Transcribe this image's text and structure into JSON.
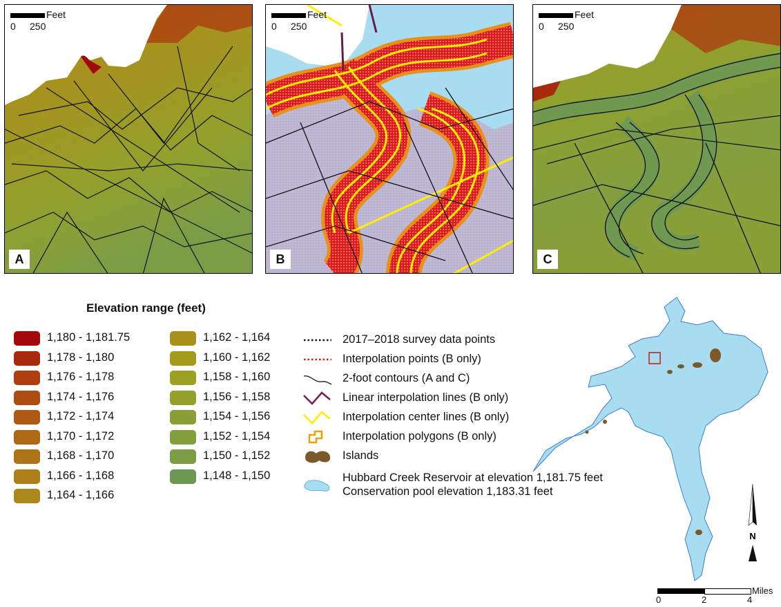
{
  "panels": [
    {
      "label": "A",
      "scale_unit": "Feet",
      "scale_ticks": [
        "0",
        "250"
      ]
    },
    {
      "label": "B",
      "scale_unit": "Feet",
      "scale_ticks": [
        "0",
        "250"
      ]
    },
    {
      "label": "C",
      "scale_unit": "Feet",
      "scale_ticks": [
        "0",
        "250"
      ]
    }
  ],
  "legend": {
    "title": "Elevation range (feet)",
    "elevation_ranges": [
      {
        "label": "1,180 - 1,181.75",
        "color": "#a3080c"
      },
      {
        "label": "1,178 - 1,180",
        "color": "#a82a0c"
      },
      {
        "label": "1,176 - 1,178",
        "color": "#ad3e10"
      },
      {
        "label": "1,174 - 1,176",
        "color": "#ad4c12"
      },
      {
        "label": "1,172 - 1,174",
        "color": "#ae5a14"
      },
      {
        "label": "1,170 - 1,172",
        "color": "#ad6816"
      },
      {
        "label": "1,168 - 1,170",
        "color": "#ad7518"
      },
      {
        "label": "1,166 - 1,168",
        "color": "#ad7f1a"
      },
      {
        "label": "1,164 - 1,166",
        "color": "#ab881b"
      },
      {
        "label": "1,162 - 1,164",
        "color": "#a9901c"
      },
      {
        "label": "1,160 - 1,162",
        "color": "#a49a1e"
      },
      {
        "label": "1,158 - 1,160",
        "color": "#9ca023"
      },
      {
        "label": "1,156 - 1,158",
        "color": "#93a12c"
      },
      {
        "label": "1,154 - 1,156",
        "color": "#8a9f36"
      },
      {
        "label": "1,152 - 1,154",
        "color": "#839f3e"
      },
      {
        "label": "1,150 - 1,152",
        "color": "#7c9d46"
      },
      {
        "label": "1,148 - 1,150",
        "color": "#6d9853"
      }
    ],
    "symbols": [
      {
        "label": "2017–2018 survey data points",
        "icon": "black-dotted-line-icon"
      },
      {
        "label": "Interpolation points (B only)",
        "icon": "red-dotted-line-icon"
      },
      {
        "label": "2-foot contours (A and C)",
        "icon": "contour-line-icon"
      },
      {
        "label": "Linear interpolation lines (B only)",
        "icon": "purple-zigzag-icon"
      },
      {
        "label": "Interpolation center lines (B only)",
        "icon": "yellow-zigzag-icon"
      },
      {
        "label": "Interpolation polygons (B only)",
        "icon": "orange-polygon-icon"
      },
      {
        "label": "Islands",
        "icon": "island-blob-icon"
      },
      {
        "label": "Hubbard Creek Reservoir at elevation 1,181.75 feet",
        "label2": "Conservation pool elevation 1,183.31 feet",
        "icon": "reservoir-blob-icon"
      }
    ]
  },
  "locator": {
    "scale_unit": "Miles",
    "scale_ticks": [
      "0",
      "2",
      "4"
    ],
    "north_label": "N",
    "reservoir_color": "#a8dcf0",
    "island_color": "#7a5a2a",
    "inset_box_color": "#d01010"
  }
}
